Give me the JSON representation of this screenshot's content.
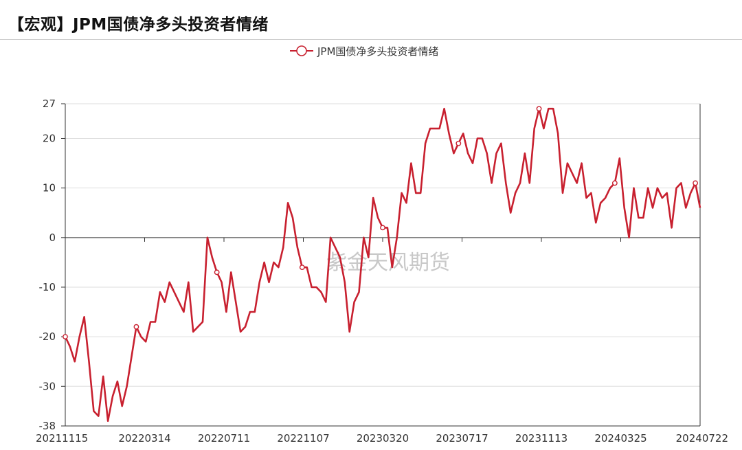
{
  "header": {
    "title": "【宏观】JPM国债净多头投资者情绪"
  },
  "watermark": "紫金天风期货",
  "colors": {
    "series": "#c8202f",
    "grid": "#dddddd",
    "axis": "#333333"
  },
  "chart_data": {
    "type": "line",
    "title": "【宏观】JPM国债净多头投资者情绪",
    "legend_position": "top-center",
    "grid": true,
    "ylim": [
      -38,
      27
    ],
    "yticks": [
      27,
      20,
      10,
      0,
      -10,
      -20,
      -30,
      -38
    ],
    "xtick_labels": [
      "20211115",
      "20220314",
      "20220711",
      "20221107",
      "20230320",
      "20230717",
      "20231113",
      "20240325",
      "20240722"
    ],
    "series": [
      {
        "name": "JPM国债净多头投资者情绪",
        "values": [
          -20,
          -22,
          -25,
          -20,
          -16,
          -25,
          -35,
          -36,
          -28,
          -37,
          -32,
          -29,
          -34,
          -30,
          -24,
          -18,
          -20,
          -21,
          -17,
          -17,
          -11,
          -13,
          -9,
          -11,
          -13,
          -15,
          -9,
          -19,
          -18,
          -17,
          0,
          -4,
          -7,
          -9,
          -15,
          -7,
          -13,
          -19,
          -18,
          -15,
          -15,
          -9,
          -5,
          -9,
          -5,
          -6,
          -2,
          7,
          4,
          -2,
          -6,
          -6,
          -10,
          -10,
          -11,
          -13,
          0,
          -2,
          -4,
          -9,
          -19,
          -13,
          -11,
          0,
          -4,
          8,
          4,
          2,
          2,
          -6,
          0,
          9,
          7,
          15,
          9,
          9,
          19,
          22,
          22,
          22,
          26,
          21,
          17,
          19,
          21,
          17,
          15,
          20,
          20,
          17,
          11,
          17,
          19,
          11,
          5,
          9,
          11,
          17,
          11,
          22,
          26,
          22,
          26,
          26,
          21,
          9,
          15,
          13,
          11,
          15,
          8,
          9,
          3,
          7,
          8,
          10,
          11,
          16,
          6,
          0,
          10,
          4,
          4,
          10,
          6,
          10,
          8,
          9,
          2,
          10,
          11,
          6,
          9,
          11,
          6
        ],
        "marker_indices": [
          0,
          15,
          32,
          50,
          67,
          83,
          100,
          116,
          133
        ]
      }
    ]
  }
}
